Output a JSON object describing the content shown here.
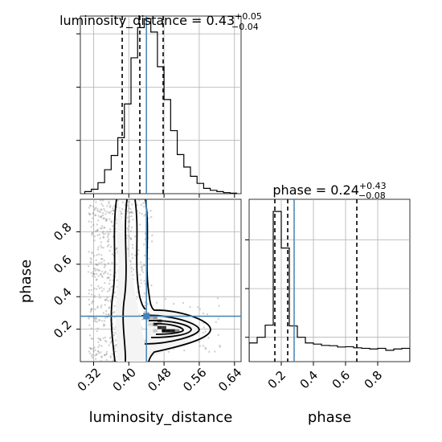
{
  "chart_data": {
    "type": "corner",
    "parameters": [
      "luminosity_distance",
      "phase"
    ],
    "grid": true,
    "truth_color": "#4682b4",
    "hist_color": "#000000",
    "panels": [
      {
        "kind": "histogram",
        "parameter": "luminosity_distance",
        "title_prefix": "luminosity_distance = ",
        "median": "0.43",
        "err_plus": "+0.05",
        "err_minus": "−0.04",
        "xlim": [
          0.29,
          0.655
        ],
        "ylim": [
          0,
          1.0
        ],
        "bins": [
          0.3,
          0.315,
          0.33,
          0.345,
          0.36,
          0.375,
          0.39,
          0.405,
          0.42,
          0.435,
          0.45,
          0.465,
          0.48,
          0.495,
          0.51,
          0.525,
          0.54,
          0.555,
          0.57,
          0.585,
          0.6,
          0.615,
          0.63,
          0.645
        ],
        "counts": [
          0.012,
          0.025,
          0.062,
          0.135,
          0.215,
          0.315,
          0.505,
          0.765,
          0.935,
          0.985,
          0.91,
          0.715,
          0.53,
          0.355,
          0.22,
          0.15,
          0.098,
          0.058,
          0.03,
          0.019,
          0.012,
          0.006,
          0.003
        ],
        "quantiles": [
          0.385,
          0.425,
          0.478
        ],
        "truth": 0.44
      },
      {
        "kind": "histogram",
        "parameter": "phase",
        "title_prefix": "phase = ",
        "median": "0.24",
        "err_plus": "+0.43",
        "err_minus": "−0.08",
        "xlim": [
          0.0,
          1.0
        ],
        "ylim": [
          0,
          1.0
        ],
        "bins": [
          0.0,
          0.05,
          0.1,
          0.15,
          0.2,
          0.25,
          0.3,
          0.35,
          0.4,
          0.45,
          0.5,
          0.55,
          0.6,
          0.65,
          0.7,
          0.75,
          0.8,
          0.85,
          0.9,
          0.95,
          1.0
        ],
        "counts": [
          0.115,
          0.15,
          0.225,
          0.925,
          0.7,
          0.22,
          0.15,
          0.115,
          0.108,
          0.1,
          0.098,
          0.09,
          0.092,
          0.085,
          0.082,
          0.078,
          0.082,
          0.07,
          0.078,
          0.082
        ],
        "quantiles": [
          0.16,
          0.24,
          0.67
        ],
        "truth": 0.28
      },
      {
        "kind": "2d-density",
        "x_parameter": "luminosity_distance",
        "y_parameter": "phase",
        "xlim": [
          0.29,
          0.655
        ],
        "ylim": [
          0.0,
          1.0
        ],
        "truth": [
          0.44,
          0.28
        ],
        "peak": [
          0.475,
          0.18
        ]
      }
    ],
    "axes": {
      "luminosity_distance": {
        "label": "luminosity_distance",
        "ticks": [
          0.32,
          0.4,
          0.48,
          0.56,
          0.64
        ],
        "tick_labels": [
          "0.32",
          "0.40",
          "0.48",
          "0.56",
          "0.64"
        ]
      },
      "phase": {
        "label": "phase",
        "ticks": [
          0.2,
          0.4,
          0.6,
          0.8
        ],
        "tick_labels": [
          "0.2",
          "0.4",
          "0.6",
          "0.8"
        ]
      }
    }
  }
}
